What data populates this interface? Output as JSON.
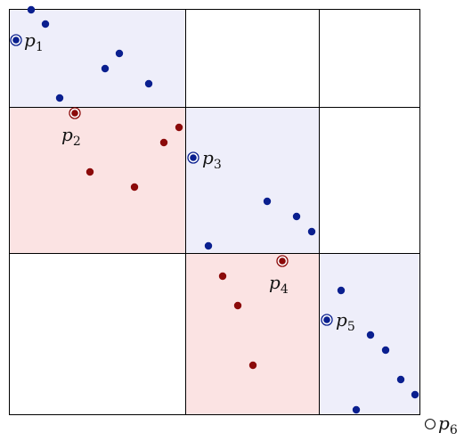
{
  "colors": {
    "blue_region": "#eeeefa",
    "red_region": "#fbe3e3",
    "blue_point": "#0a1f8f",
    "red_point": "#8b0a0a",
    "grid_line": "#000000",
    "text": "#111111"
  },
  "regions": [
    {
      "name": "region-top-left",
      "color": "blue"
    },
    {
      "name": "region-mid-left",
      "color": "red"
    },
    {
      "name": "region-mid-center",
      "color": "blue"
    },
    {
      "name": "region-bottom-center",
      "color": "red"
    },
    {
      "name": "region-bottom-right",
      "color": "blue"
    }
  ],
  "special_points": [
    {
      "label": "p",
      "sub": "1",
      "style": "blue-double"
    },
    {
      "label": "p",
      "sub": "2",
      "style": "red-double"
    },
    {
      "label": "p",
      "sub": "3",
      "style": "blue-double"
    },
    {
      "label": "p",
      "sub": "4",
      "style": "red-double"
    },
    {
      "label": "p",
      "sub": "5",
      "style": "blue-double"
    },
    {
      "label": "p",
      "sub": "6",
      "style": "hollow"
    }
  ]
}
